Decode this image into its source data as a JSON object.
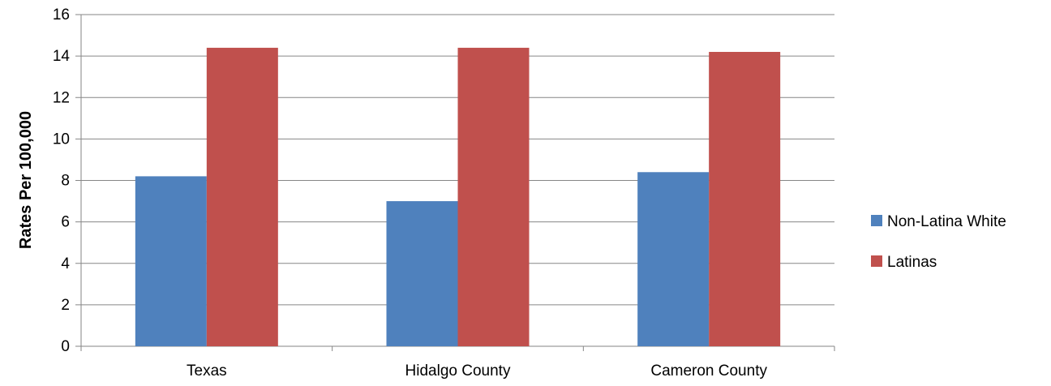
{
  "chart_data": {
    "type": "bar",
    "title": "",
    "xlabel": "",
    "ylabel": "Rates Per 100,000",
    "categories": [
      "Texas",
      "Hidalgo County",
      "Cameron County"
    ],
    "series": [
      {
        "name": "Non-Latina White",
        "values": [
          8.2,
          7.0,
          8.4
        ],
        "color": "#4F81BD"
      },
      {
        "name": "Latinas",
        "values": [
          14.4,
          14.4,
          14.2
        ],
        "color": "#C0504D"
      }
    ],
    "ylim": [
      0,
      16
    ],
    "yticks": [
      "0",
      "2",
      "4",
      "6",
      "8",
      "10",
      "12",
      "14",
      "16"
    ],
    "grid": true,
    "legend_position": "right"
  }
}
